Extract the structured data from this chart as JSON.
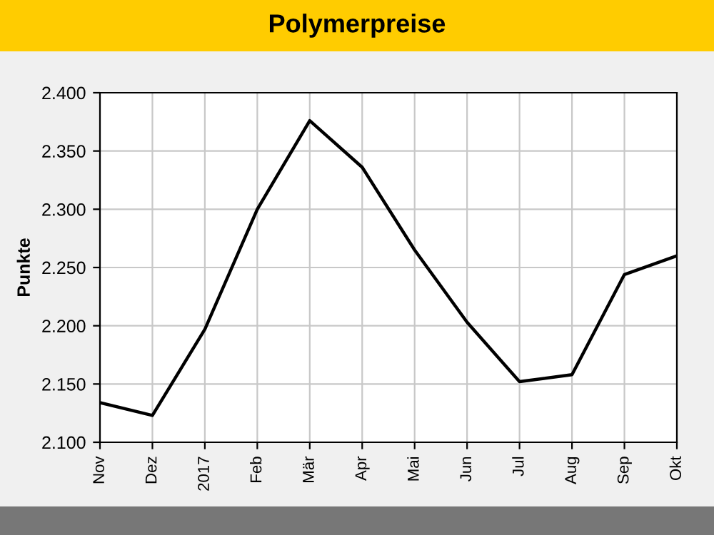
{
  "chart_data": {
    "type": "line",
    "title": "Polymerpreise",
    "ylabel": "Punkte",
    "categories": [
      "Nov",
      "Dez",
      "2017",
      "Feb",
      "Mär",
      "Apr",
      "Mai",
      "Jun",
      "Jul",
      "Aug",
      "Sep",
      "Okt"
    ],
    "series": [
      {
        "color": "#000000",
        "values": [
          2.134,
          2.123,
          2.197,
          2.3,
          2.376,
          2.336,
          2.265,
          2.203,
          2.152,
          2.158,
          2.244,
          2.26
        ]
      }
    ],
    "ylim": [
      2.1,
      2.4
    ],
    "yticks": [
      {
        "value": 2.1,
        "label": "2.100"
      },
      {
        "value": 2.15,
        "label": "2.150"
      },
      {
        "value": 2.2,
        "label": "2.200"
      },
      {
        "value": 2.25,
        "label": "2.250"
      },
      {
        "value": 2.3,
        "label": "2.300"
      },
      {
        "value": 2.35,
        "label": "2.350"
      },
      {
        "value": 2.4,
        "label": "2.400"
      }
    ],
    "grid": true,
    "marker": "none",
    "line_style": "solid"
  }
}
